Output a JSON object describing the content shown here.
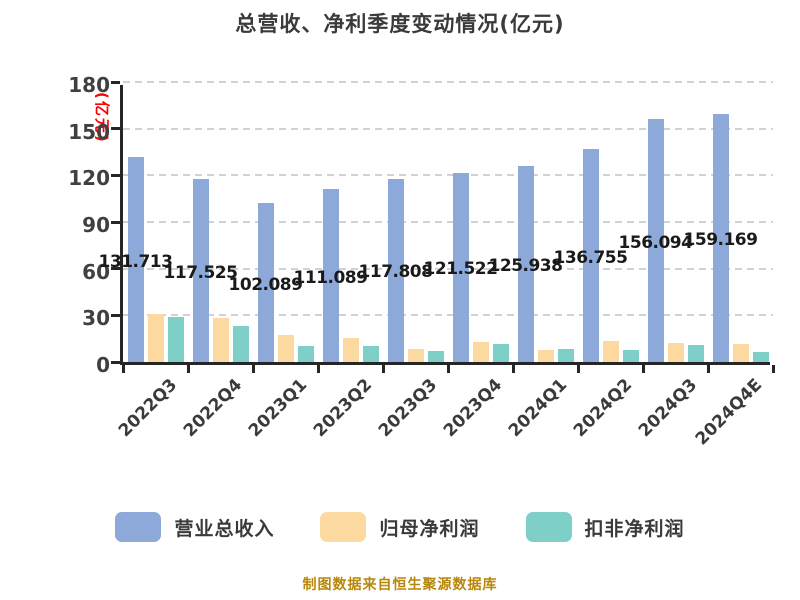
{
  "title": "总营收、净利季度变动情况(亿元)",
  "y_axis_title": "(亿元)",
  "source_note": "制图数据来自恒生聚源数据库",
  "colors": {
    "revenue_bar": "#8ca9d9",
    "net_profit_bar": "#fcd9a1",
    "non_gaap_bar": "#7fcfc9",
    "axis": "#262626",
    "gridline": "#d2d2d2",
    "title_text": "#3a3a3a",
    "y_axis_title_red": "#ff0000",
    "value_label_text": "#1a1a1a",
    "source_text": "#b8860b"
  },
  "legend": [
    {
      "label": "营业总收入",
      "color": "#8ca9d9"
    },
    {
      "label": "归母净利润",
      "color": "#fcd9a1"
    },
    {
      "label": "扣非净利润",
      "color": "#7fcfc9"
    }
  ],
  "chart_data": {
    "type": "bar",
    "title": "总营收、净利季度变动情况(亿元)",
    "ylabel": "(亿元)",
    "xlabel": "",
    "ylim": [
      0,
      180
    ],
    "yticks": [
      0,
      30,
      60,
      90,
      120,
      150,
      180
    ],
    "grid": "horizontal dashed",
    "legend_position": "bottom",
    "categories": [
      "2022Q3",
      "2022Q4",
      "2023Q1",
      "2023Q2",
      "2023Q3",
      "2023Q4",
      "2024Q1",
      "2024Q2",
      "2024Q3",
      "2024Q4E"
    ],
    "series": [
      {
        "name": "营业总收入",
        "values": [
          131.713,
          117.525,
          102.089,
          111.089,
          117.808,
          121.522,
          125.938,
          136.755,
          156.094,
          159.169
        ],
        "value_labels": [
          "131.713",
          "117.525",
          "102.089",
          "111.089",
          "117.808",
          "121.522",
          "125.938",
          "136.755",
          "156.094",
          "159.169"
        ]
      },
      {
        "name": "归母净利润",
        "values": [
          31.0,
          28.0,
          17.1,
          15.4,
          8.6,
          13.0,
          7.5,
          13.3,
          12.2,
          11.8
        ]
      },
      {
        "name": "扣非净利润",
        "values": [
          28.9,
          22.9,
          10.5,
          10.1,
          6.9,
          11.8,
          8.2,
          7.9,
          11.1,
          6.4
        ]
      }
    ]
  }
}
